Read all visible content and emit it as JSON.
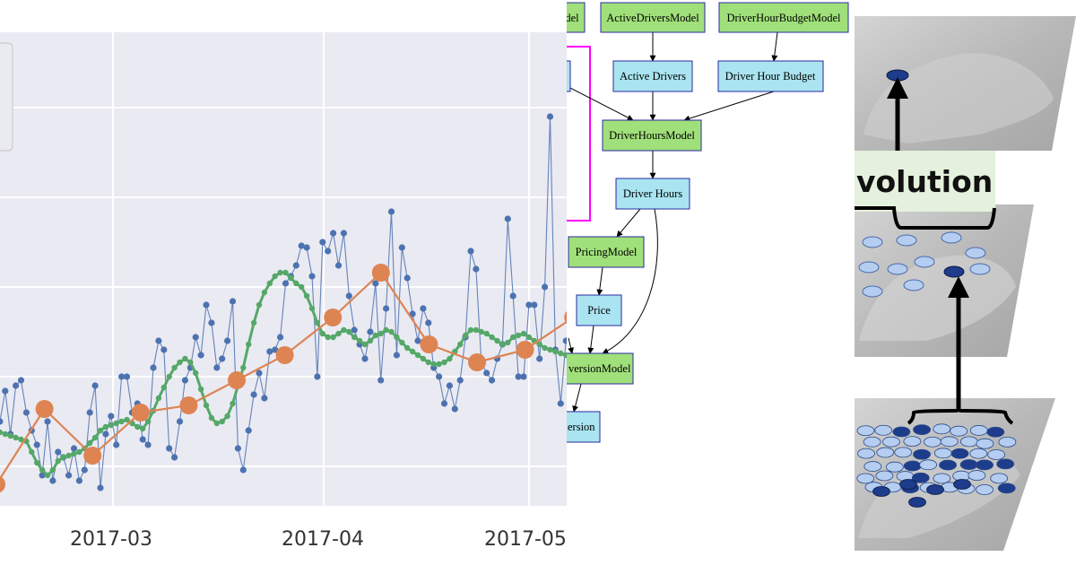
{
  "chart_data": {
    "type": "line",
    "x_ticks": [
      "2017-03",
      "2017-04",
      "2017-05"
    ],
    "grid": true,
    "series": [
      {
        "kind": "daily",
        "color": "#4c72b0",
        "values": [
          0.1,
          0.25,
          0.42,
          0.18,
          0.45,
          0.48,
          0.3,
          0.2,
          0.12,
          -0.05,
          0.25,
          -0.08,
          0.08,
          0.05,
          -0.05,
          0.1,
          -0.08,
          -0.02,
          0.3,
          0.45,
          -0.12,
          0.18,
          0.28,
          0.12,
          0.5,
          0.5,
          0.3,
          0.35,
          0.15,
          0.12,
          0.55,
          0.7,
          0.65,
          0.1,
          0.05,
          0.25,
          0.48,
          0.55,
          0.72,
          0.62,
          0.9,
          0.8,
          0.55,
          0.6,
          0.7,
          0.92,
          0.1,
          -0.02,
          0.2,
          0.4,
          0.52,
          0.38,
          0.64,
          0.65,
          0.72,
          1.02,
          1.06,
          1.12,
          1.23,
          1.22,
          1.06,
          0.5,
          1.25,
          1.2,
          1.3,
          1.12,
          1.3,
          0.95,
          0.76,
          0.68,
          0.6,
          0.75,
          1.02,
          0.48,
          0.88,
          1.42,
          0.62,
          1.22,
          1.05,
          0.85,
          0.7,
          0.88,
          0.8,
          0.55,
          0.5,
          0.35,
          0.45,
          0.32,
          0.48,
          0.72,
          1.2,
          1.1,
          0.58,
          0.52,
          0.48,
          0.6,
          0.68,
          1.38,
          0.95,
          0.5,
          0.5,
          0.9,
          0.9,
          0.6,
          1.0,
          1.95,
          0.65,
          0.35,
          0.7,
          0.62,
          0.5,
          0.78
        ]
      },
      {
        "kind": "rolling",
        "color": "#55a868",
        "values": [
          0.2,
          0.19,
          0.18,
          0.17,
          0.16,
          0.15,
          0.14,
          0.08,
          0.02,
          -0.02,
          -0.05,
          -0.02,
          0.03,
          0.05,
          0.06,
          0.07,
          0.08,
          0.1,
          0.13,
          0.16,
          0.2,
          0.22,
          0.23,
          0.24,
          0.25,
          0.26,
          0.24,
          0.22,
          0.21,
          0.25,
          0.31,
          0.38,
          0.44,
          0.5,
          0.55,
          0.58,
          0.6,
          0.58,
          0.52,
          0.43,
          0.34,
          0.27,
          0.24,
          0.25,
          0.28,
          0.35,
          0.45,
          0.55,
          0.68,
          0.8,
          0.9,
          0.97,
          1.02,
          1.06,
          1.08,
          1.08,
          1.05,
          1.02,
          1.0,
          0.95,
          0.88,
          0.8,
          0.74,
          0.72,
          0.72,
          0.74,
          0.76,
          0.75,
          0.72,
          0.7,
          0.68,
          0.7,
          0.73,
          0.74,
          0.76,
          0.75,
          0.72,
          0.69,
          0.66,
          0.64,
          0.62,
          0.6,
          0.58,
          0.57,
          0.57,
          0.58,
          0.6,
          0.64,
          0.68,
          0.73,
          0.76,
          0.76,
          0.75,
          0.74,
          0.72,
          0.7,
          0.68,
          0.69,
          0.72,
          0.73,
          0.74,
          0.72,
          0.7,
          0.68,
          0.66,
          0.65,
          0.64,
          0.63,
          0.62,
          0.61,
          0.6,
          0.6
        ]
      },
      {
        "kind": "weekly",
        "color": "#dd8452",
        "values": [
          -0.1,
          0.32,
          0.06,
          0.3,
          0.34,
          0.48,
          0.62,
          0.83,
          1.08,
          0.68,
          0.58,
          0.65,
          0.83,
          0.95
        ]
      }
    ]
  },
  "diagram": {
    "nodes": [
      {
        "id": "model-cropped",
        "label": "del",
        "kind": "model"
      },
      {
        "id": "active-drivers-model",
        "label": "ActiveDriversModel",
        "kind": "model"
      },
      {
        "id": "driver-hour-budget-model",
        "label": "DriverHourBudgetModel",
        "kind": "model"
      },
      {
        "id": "active-drivers",
        "label": "Active Drivers",
        "kind": "quantity"
      },
      {
        "id": "driver-hour-budget",
        "label": "Driver Hour Budget",
        "kind": "quantity"
      },
      {
        "id": "driver-hours-model",
        "label": "DriverHoursModel",
        "kind": "model"
      },
      {
        "id": "driver-hours",
        "label": "Driver Hours",
        "kind": "quantity"
      },
      {
        "id": "pricing-model",
        "label": "PricingModel",
        "kind": "model"
      },
      {
        "id": "price",
        "label": "Price",
        "kind": "quantity"
      },
      {
        "id": "conversion-model",
        "label": "versionModel",
        "kind": "model"
      },
      {
        "id": "conversion",
        "label": "ersion",
        "kind": "quantity"
      }
    ],
    "colors": {
      "model": "#a0e07a",
      "quantity": "#a9e4f0",
      "highlight": "#ff00ff"
    }
  },
  "convolution_figure": {
    "caption": "volution",
    "point_color": "#1e3c8c",
    "point_color_light": "#b4cdf0"
  }
}
